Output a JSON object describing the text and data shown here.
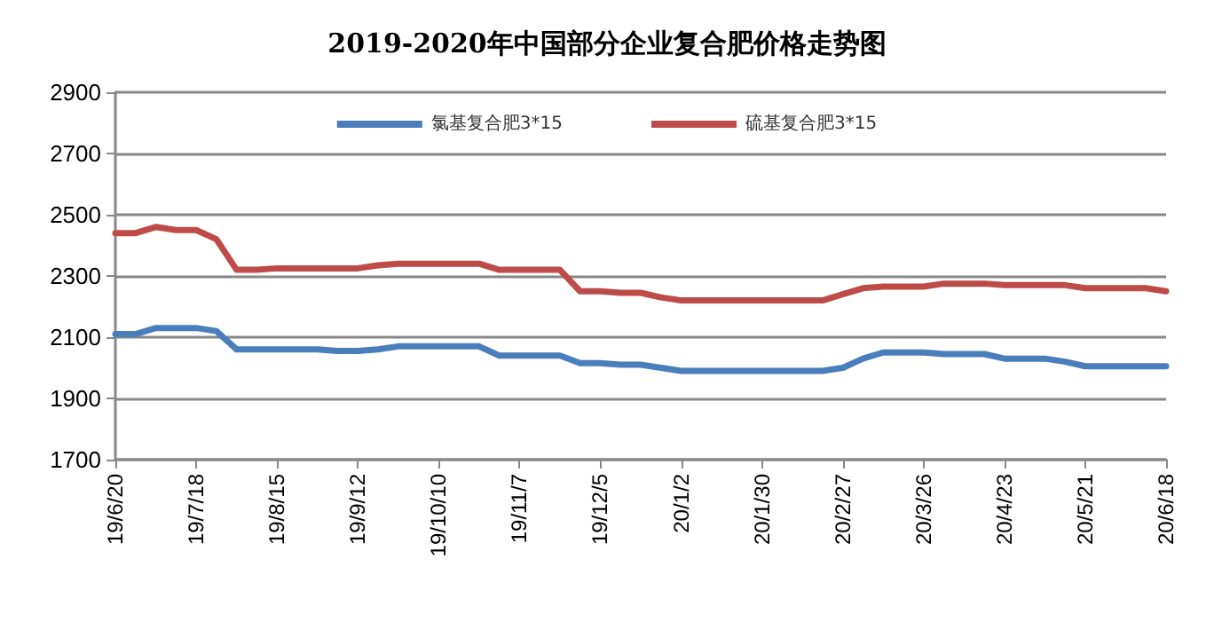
{
  "chart_data": {
    "type": "line",
    "title": "2019-2020年中国部分企业复合肥价格走势图",
    "categories": [
      "19/6/20",
      null,
      null,
      null,
      "19/7/18",
      null,
      null,
      null,
      "19/8/15",
      null,
      null,
      null,
      "19/9/12",
      null,
      null,
      null,
      "19/10/10",
      null,
      null,
      null,
      "19/11/7",
      null,
      null,
      null,
      "19/12/5",
      null,
      null,
      null,
      "20/1/2",
      null,
      null,
      null,
      "20/1/30",
      null,
      null,
      null,
      "20/2/27",
      null,
      null,
      null,
      "20/3/26",
      null,
      null,
      null,
      "20/4/23",
      null,
      null,
      null,
      "20/5/21",
      null,
      null,
      null,
      "20/6/18"
    ],
    "series": [
      {
        "name": "氯基复合肥3*15",
        "color": "#4a7ebb",
        "values": [
          2110,
          2110,
          2130,
          2130,
          2130,
          2120,
          2060,
          2060,
          2060,
          2060,
          2060,
          2055,
          2055,
          2060,
          2070,
          2070,
          2070,
          2070,
          2070,
          2040,
          2040,
          2040,
          2040,
          2015,
          2015,
          2010,
          2010,
          2000,
          1990,
          1990,
          1990,
          1990,
          1990,
          1990,
          1990,
          1990,
          2000,
          2030,
          2050,
          2050,
          2050,
          2045,
          2045,
          2045,
          2030,
          2030,
          2030,
          2020,
          2005,
          2005,
          2005,
          2005,
          2005
        ]
      },
      {
        "name": "硫基复合肥3*15",
        "color": "#be4b48",
        "values": [
          2440,
          2440,
          2460,
          2450,
          2450,
          2420,
          2320,
          2320,
          2325,
          2325,
          2325,
          2325,
          2325,
          2335,
          2340,
          2340,
          2340,
          2340,
          2340,
          2320,
          2320,
          2320,
          2320,
          2250,
          2250,
          2245,
          2245,
          2230,
          2220,
          2220,
          2220,
          2220,
          2220,
          2220,
          2220,
          2220,
          2240,
          2260,
          2265,
          2265,
          2265,
          2275,
          2275,
          2275,
          2270,
          2270,
          2270,
          2270,
          2260,
          2260,
          2260,
          2260,
          2250
        ]
      }
    ],
    "ylim": [
      1700,
      2900
    ],
    "yticks": [
      1700,
      1900,
      2100,
      2300,
      2500,
      2700,
      2900
    ],
    "grid": "y",
    "legend": "top",
    "marker": "none",
    "line_style": "solid"
  }
}
